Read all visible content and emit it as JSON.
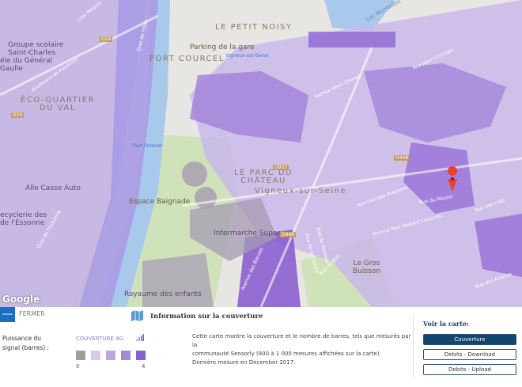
{
  "map": {
    "labels": {
      "groupe_scolaire": "Groupe scolaire\nSaint-Charles",
      "general_gaulle": "éle du Général\nGaulle",
      "eco_quartier": "ÉCO-QUARTIER\nDU VAL",
      "le_petit_noisy": "LE PETIT NOISY",
      "parking": "Parking de la gare",
      "vigneux_station": "Vigneux-sur-Seine",
      "port_courcel": "PORT COURCEL",
      "port_premier": "Port Premier",
      "parc_chateau": "LE PARC DU\nCHÂTEAU",
      "vigneux": "Vigneux-sur-Seine",
      "espace_baignade": "Espace Baignade",
      "intermarche": "Intermarche Super",
      "royaume": "Royaume des enfants",
      "le_gros_buisson": "Le Gros\nBuisson",
      "allo_casse": "Allo Casse Auto",
      "cyclerie": "ecyclerie des\nde l'Essonne",
      "lac_montalbot": "Lac Montalbot",
      "quai_oise": "Quai de l'Oise",
      "quai_industrie": "Quai de l'Industrie",
      "bd_provence": "Boulevard de Provence",
      "clos_pergola": "Clos Pergola",
      "av_henri_charon": "Avenue Henri Charon",
      "rue_jean_corringer": "Rue Jean Corringer",
      "rue_georges_brassens": "Rue Georges Brassens",
      "av_paul_vaillant": "Avenue Paul Vaillant Couturier",
      "rue_lilas": "Rue des Lilas",
      "rue_acacias": "Rue des Acacias",
      "rue_liberte": "Rue de la Liberté",
      "rue_mareille": "Rue de Mareille",
      "av_bleuets": "Avenue des Bleuets",
      "rue_du_bois": "Rue du Bois",
      "rue_moulin": "Rue du Moulin"
    },
    "road_shields": [
      "D29",
      "D29",
      "D933",
      "D448",
      "D448"
    ],
    "attribution": "Google",
    "marker_color": "#e8412c"
  },
  "panel": {
    "close_label": "FERMER",
    "title": "Information sur la couverture",
    "signal_label": "Puissance du signal (barres) :",
    "coverage_label": "COUVERTURE 4G",
    "legend_colors": [
      "#9e9e9e",
      "#d6cbe9",
      "#bba6df",
      "#a487d8",
      "#8a5fcf"
    ],
    "legend_min": "0",
    "legend_max": "4",
    "description": [
      "Cette carte montre la couverture et le nombre de barres, tels que mesurés par la",
      "communauté Sensorly (900 à 1 000 mesures affichées sur la carte).",
      "Dernière mesure en December 2017."
    ],
    "view_label": "Voir la carte:",
    "buttons": [
      {
        "label": "Couverture",
        "active": true
      },
      {
        "label": "Debits - Download",
        "active": false
      },
      {
        "label": "Debits - Upload",
        "active": false
      }
    ]
  }
}
